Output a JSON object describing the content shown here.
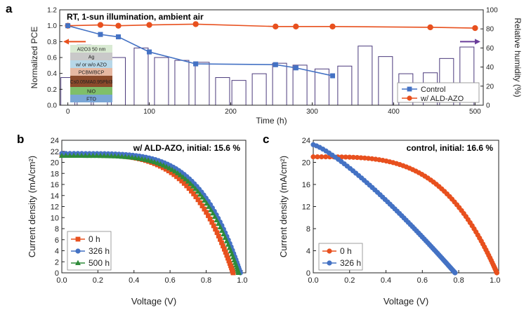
{
  "chart_data": [
    {
      "panel": "a",
      "type": "line",
      "annotation": "RT, 1-sun illumination, ambient air",
      "xlabel": "Time (h)",
      "ylabel": "Normalized PCE",
      "y2label": "Relative humidity (%)",
      "xlim": [
        -10,
        510
      ],
      "ylim": [
        0,
        1.2
      ],
      "y2lim": [
        0,
        100
      ],
      "xticks": [
        0,
        100,
        200,
        300,
        400,
        500
      ],
      "yticks": [
        0.0,
        0.2,
        0.4,
        0.6,
        0.8,
        1.0,
        1.2
      ],
      "y2ticks": [
        0,
        20,
        40,
        60,
        80,
        100
      ],
      "series": [
        {
          "name": "Control",
          "color": "#4472c4",
          "marker": "square",
          "x": [
            0,
            40,
            62,
            100,
            157,
            255,
            280,
            325
          ],
          "y": [
            1.0,
            0.89,
            0.86,
            0.67,
            0.52,
            0.51,
            0.47,
            0.37
          ]
        },
        {
          "name": "w/ ALD-AZO",
          "color": "#e8501e",
          "marker": "circle",
          "x": [
            0,
            40,
            62,
            100,
            157,
            255,
            280,
            325,
            445,
            500
          ],
          "y": [
            1.0,
            1.01,
            1.0,
            1.01,
            1.02,
            0.99,
            0.99,
            0.99,
            0.98,
            0.97
          ]
        }
      ],
      "humidity_bars": {
        "color": "#4b3a7c",
        "x": [
          0,
          20,
          40,
          62,
          90,
          115,
          140,
          165,
          190,
          210,
          235,
          260,
          285,
          312,
          340,
          365,
          390,
          415,
          445,
          465,
          490
        ],
        "values": [
          29,
          63,
          36,
          50,
          60,
          50,
          47,
          45,
          29,
          26,
          33,
          44,
          42,
          38,
          41,
          62,
          51,
          33,
          34,
          49,
          61
        ]
      },
      "arrows": [
        {
          "direction": "left",
          "axis": "PCE",
          "color": "#e8501e"
        },
        {
          "direction": "right",
          "axis": "humidity",
          "color": "#6a3d9a"
        }
      ],
      "device_stack": [
        "Al2O3 50 nm",
        "Ag",
        "w/ or w/o AZO",
        "PCBM/BCP",
        "Cs0.05MA0.95PbI3",
        "NiO",
        "FTO"
      ]
    },
    {
      "panel": "b",
      "type": "line",
      "annotation": "w/ ALD-AZO, initial: 15.6 %",
      "xlabel": "Voltage (V)",
      "ylabel": "Current density (mA/cm²)",
      "xlim": [
        0,
        1.02
      ],
      "ylim": [
        0,
        24
      ],
      "xticks": [
        0.0,
        0.2,
        0.4,
        0.6,
        0.8,
        1.0
      ],
      "yticks": [
        0,
        2,
        4,
        6,
        8,
        10,
        12,
        14,
        16,
        18,
        20,
        22,
        24
      ],
      "legend": "bottom-left",
      "series": [
        {
          "name": "0 h",
          "color": "#e8501e",
          "marker": "square",
          "jsc": 21.4,
          "voc": 0.95,
          "n": 4.2
        },
        {
          "name": "326 h",
          "color": "#4472c4",
          "marker": "circle",
          "jsc": 21.6,
          "voc": 0.99,
          "n": 4.6
        },
        {
          "name": "500 h",
          "color": "#2e8b3a",
          "marker": "triangle",
          "jsc": 21.2,
          "voc": 0.98,
          "n": 4.5
        }
      ]
    },
    {
      "panel": "c",
      "type": "line",
      "annotation": "control, initial: 16.6 %",
      "xlabel": "Voltage (V)",
      "ylabel": "Current density (mA/cm²)",
      "xlim": [
        0,
        1.02
      ],
      "ylim": [
        0,
        24
      ],
      "xticks": [
        0.0,
        0.2,
        0.4,
        0.6,
        0.8,
        1.0
      ],
      "yticks": [
        0,
        4,
        8,
        12,
        16,
        20,
        24
      ],
      "legend": "bottom-left",
      "series": [
        {
          "name": "0 h",
          "color": "#e8501e",
          "marker": "circle",
          "jsc": 21.0,
          "voc": 1.01,
          "n": 3.6
        },
        {
          "name": "326 h",
          "color": "#4472c4",
          "marker": "circle",
          "jsc": 23.2,
          "voc": 0.78,
          "n": 1.25
        }
      ]
    }
  ]
}
